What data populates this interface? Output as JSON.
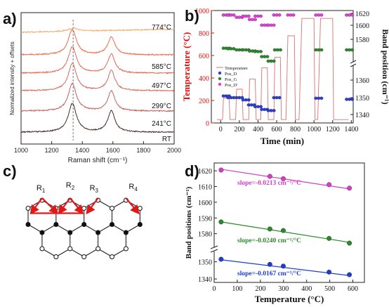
{
  "panels": {
    "a": {
      "letter": "a)"
    },
    "b": {
      "letter": "b)"
    },
    "c": {
      "letter": "c)"
    },
    "d": {
      "letter": "d)"
    }
  },
  "chart_data": [
    {
      "type": "line",
      "panel": "a",
      "xlabel": "Raman shift (cm⁻¹)",
      "ylabel": "Normalized intensity + offsets",
      "xlim": [
        1000,
        2000
      ],
      "x_ticks": [
        "1000",
        "1200",
        "1400",
        "1600",
        "1800",
        "2000"
      ],
      "series": [
        {
          "name": "774°C",
          "color": "#f0b070",
          "offset": 5,
          "d_peak": 0.15,
          "g_peak": 0.03
        },
        {
          "name": "585°C",
          "color": "#f06a4a",
          "offset": 4,
          "d_peak": 1.2,
          "g_peak": 0.85
        },
        {
          "name": "497°C",
          "color": "#e56855",
          "offset": 3,
          "d_peak": 1.25,
          "g_peak": 0.9
        },
        {
          "name": "299°C",
          "color": "#d4685a",
          "offset": 2,
          "d_peak": 1.3,
          "g_peak": 0.95
        },
        {
          "name": "241°C",
          "color": "#c4605a",
          "offset": 1,
          "d_peak": 1.3,
          "g_peak": 0.95
        },
        {
          "name": "RT",
          "color": "#4a2a2a",
          "offset": 0,
          "d_peak": 1.35,
          "g_peak": 1.0
        }
      ]
    },
    {
      "type": "line",
      "panel": "b",
      "xlabel": "Time (min)",
      "ylabel_left": "Temperature (°C)",
      "ylabel_right": "Band position (cm⁻¹)",
      "xlim": [
        -100,
        1420
      ],
      "ylim_left": [
        0,
        1000
      ],
      "x_ticks": [
        "0",
        "200",
        "400",
        "600",
        "800",
        "1000",
        "1200",
        "1400"
      ],
      "y_left_ticks": [
        "0",
        "200",
        "400",
        "600",
        "800",
        "1000"
      ],
      "y_right_ticks": [
        "1340",
        "1350",
        "1360",
        "1580",
        "1600",
        "1620"
      ],
      "legend": [
        "Temperature",
        "Pos_D",
        "Pos_G",
        "Pos_D'"
      ],
      "temperature_profile": [
        [
          -40,
          30
        ],
        [
          20,
          30
        ],
        [
          30,
          220
        ],
        [
          90,
          220
        ],
        [
          100,
          30
        ],
        [
          160,
          30
        ],
        [
          170,
          300
        ],
        [
          230,
          300
        ],
        [
          240,
          30
        ],
        [
          300,
          30
        ],
        [
          310,
          390
        ],
        [
          370,
          390
        ],
        [
          380,
          30
        ],
        [
          430,
          30
        ],
        [
          440,
          490
        ],
        [
          500,
          490
        ],
        [
          510,
          30
        ],
        [
          570,
          30
        ],
        [
          580,
          585
        ],
        [
          640,
          585
        ],
        [
          650,
          30
        ],
        [
          700,
          30
        ],
        [
          720,
          775
        ],
        [
          790,
          775
        ],
        [
          800,
          30
        ],
        [
          840,
          30
        ],
        [
          870,
          930
        ],
        [
          1000,
          930
        ],
        [
          1010,
          30
        ],
        [
          1040,
          30
        ],
        [
          1070,
          930
        ],
        [
          1200,
          930
        ],
        [
          1210,
          30
        ],
        [
          1370,
          30
        ]
      ],
      "pos_d": [
        [
          60,
          240
        ],
        [
          110,
          225
        ],
        [
          200,
          225
        ],
        [
          270,
          205
        ],
        [
          330,
          160
        ],
        [
          400,
          145
        ],
        [
          470,
          120
        ],
        [
          540,
          110
        ],
        [
          600,
          225
        ],
        [
          1050,
          220
        ],
        [
          1380,
          210
        ]
      ],
      "pos_g": [
        [
          60,
          665
        ],
        [
          110,
          660
        ],
        [
          200,
          650
        ],
        [
          270,
          650
        ],
        [
          340,
          640
        ],
        [
          400,
          635
        ],
        [
          470,
          590
        ],
        [
          540,
          550
        ],
        [
          610,
          650
        ],
        [
          1050,
          650
        ],
        [
          1380,
          650
        ]
      ],
      "pos_d2": [
        [
          60,
          960
        ],
        [
          110,
          960
        ],
        [
          200,
          940
        ],
        [
          270,
          950
        ],
        [
          340,
          920
        ],
        [
          400,
          950
        ],
        [
          470,
          870
        ],
        [
          540,
          870
        ],
        [
          600,
          960
        ],
        [
          750,
          960
        ],
        [
          1050,
          960
        ],
        [
          1380,
          960
        ]
      ]
    },
    {
      "type": "scatter",
      "panel": "d",
      "xlabel": "Temperature (°C)",
      "ylabel": "Band positions (cm⁻¹)",
      "xlim": [
        0,
        650
      ],
      "x_ticks": [
        "0",
        "100",
        "200",
        "300",
        "400",
        "500",
        "600"
      ],
      "y_ticks_upper": [
        "1580",
        "1590",
        "1600",
        "1610",
        "1620"
      ],
      "y_ticks_lower": [
        "1340",
        "1350"
      ],
      "series": [
        {
          "name": "D'",
          "color": "#d63cc8",
          "x": [
            30,
            241,
            299,
            497,
            585
          ],
          "y": [
            1620.5,
            1616.5,
            1615.0,
            1611.2,
            1609.0
          ],
          "fit": [
            1621.0,
            1608.5
          ],
          "annotation": "slope=-0.0213 cm⁻¹/°C"
        },
        {
          "name": "G",
          "color": "#2a8a2a",
          "x": [
            30,
            241,
            299,
            497,
            585
          ],
          "y": [
            1587.5,
            1583.0,
            1582.0,
            1577.0,
            1574.0
          ],
          "fit": [
            1587.5,
            1574.5
          ],
          "annotation": "slope=-0.0240 cm⁻¹/°C"
        },
        {
          "name": "D",
          "color": "#1f3cd0",
          "x": [
            30,
            241,
            299,
            497,
            585
          ],
          "y": [
            1351.5,
            1348.5,
            1347.5,
            1344.0,
            1342.5
          ],
          "fit": [
            1351.2,
            1342.0
          ],
          "annotation": "slope=-0.0167 cm⁻¹/°C"
        }
      ]
    }
  ],
  "diagram_c": {
    "labels": [
      "R",
      "R",
      "R",
      "R"
    ],
    "subscripts": [
      "1",
      "2",
      "3",
      "4"
    ]
  }
}
